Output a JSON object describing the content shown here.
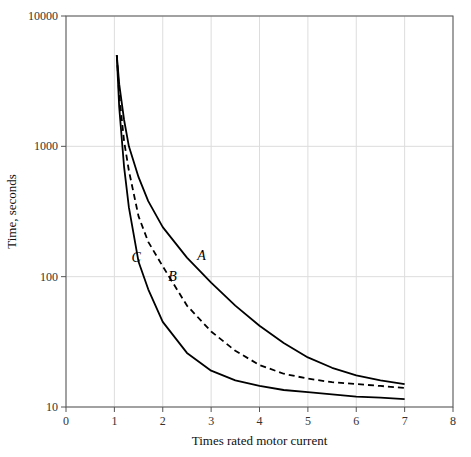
{
  "chart_data": {
    "type": "line",
    "xlabel": "Times rated motor current",
    "ylabel": "Time, seconds",
    "x": [
      1.05,
      1.1,
      1.2,
      1.3,
      1.5,
      1.7,
      2.0,
      2.5,
      3.0,
      3.5,
      4.0,
      4.5,
      5.0,
      5.5,
      6.0,
      6.5,
      7.0
    ],
    "series": [
      {
        "color": "#000000",
        "line_style": "solid",
        "values": [
          5000,
          3000,
          1600,
          1000,
          580,
          380,
          240,
          140,
          90,
          60,
          42,
          31,
          24,
          20,
          17.5,
          16,
          15
        ]
      },
      {
        "color": "#000000",
        "line_style": "dashed",
        "values": [
          5000,
          2500,
          1100,
          650,
          290,
          185,
          120,
          60,
          38,
          27,
          21,
          18,
          16.5,
          15.5,
          15,
          14.5,
          14
        ]
      },
      {
        "color": "#000000",
        "line_style": "solid",
        "values": [
          5000,
          2000,
          700,
          340,
          130,
          80,
          45,
          26,
          19,
          16,
          14.5,
          13.5,
          13,
          12.5,
          12,
          11.8,
          11.5
        ]
      }
    ],
    "annotations": [
      {
        "x": 2.8,
        "y": 145,
        "text": "A"
      },
      {
        "x": 2.2,
        "y": 100,
        "text": "B"
      },
      {
        "x": 1.45,
        "y": 140,
        "text": "C"
      }
    ],
    "xlim": [
      0,
      8
    ],
    "ylim": [
      10,
      10000
    ],
    "xticks": [
      0,
      1,
      2,
      3,
      4,
      5,
      6,
      7,
      8
    ],
    "yticks": [
      10,
      100,
      1000,
      10000
    ],
    "log": "y",
    "grid": true
  }
}
